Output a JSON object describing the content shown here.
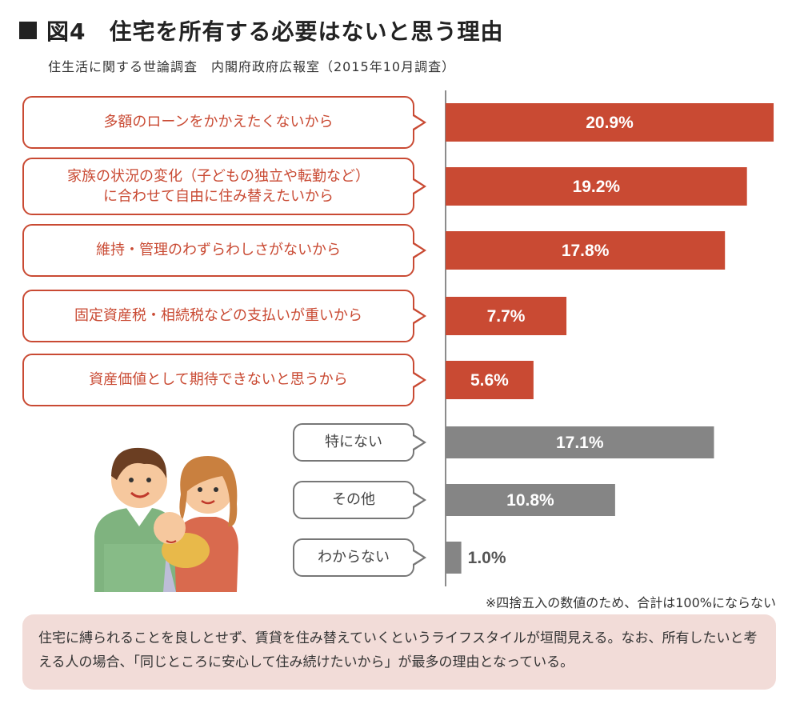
{
  "title": "図4　住宅を所有する必要はないと思う理由",
  "source": "住生活に関する世論調査　内閣府政府広報室（2015年10月調査）",
  "chart_data": {
    "type": "bar",
    "orientation": "horizontal",
    "categories": [
      "多額のローンをかかえたくないから",
      "家族の状況の変化（子どもの独立や転勤など）\nに合わせて自由に住み替えたいから",
      "維持・管理のわずらわしさがないから",
      "固定資産税・相続税などの支払いが重いから",
      "資産価値として期待できないと思うから",
      "特にない",
      "その他",
      "わからない"
    ],
    "values": [
      20.9,
      19.2,
      17.8,
      7.7,
      5.6,
      17.1,
      10.8,
      1.0
    ],
    "value_labels": [
      "20.9%",
      "19.2%",
      "17.8%",
      "7.7%",
      "5.6%",
      "17.1%",
      "10.8%",
      "1.0%"
    ],
    "groups": [
      "reason",
      "reason",
      "reason",
      "reason",
      "reason",
      "other",
      "other",
      "other"
    ],
    "colors": {
      "reason": "#c94a33",
      "other": "#858585"
    },
    "xlim": [
      0,
      21
    ]
  },
  "note": "※四捨五入の数値のため、合計は100%にならない",
  "summary": "住宅に縛られることを良しとせず、賃貸を住み替えていくというライフスタイルが垣間見える。なお、所有したいと考える人の場合、「同じところに安心して住み続けたいから」が最多の理由となっている。"
}
